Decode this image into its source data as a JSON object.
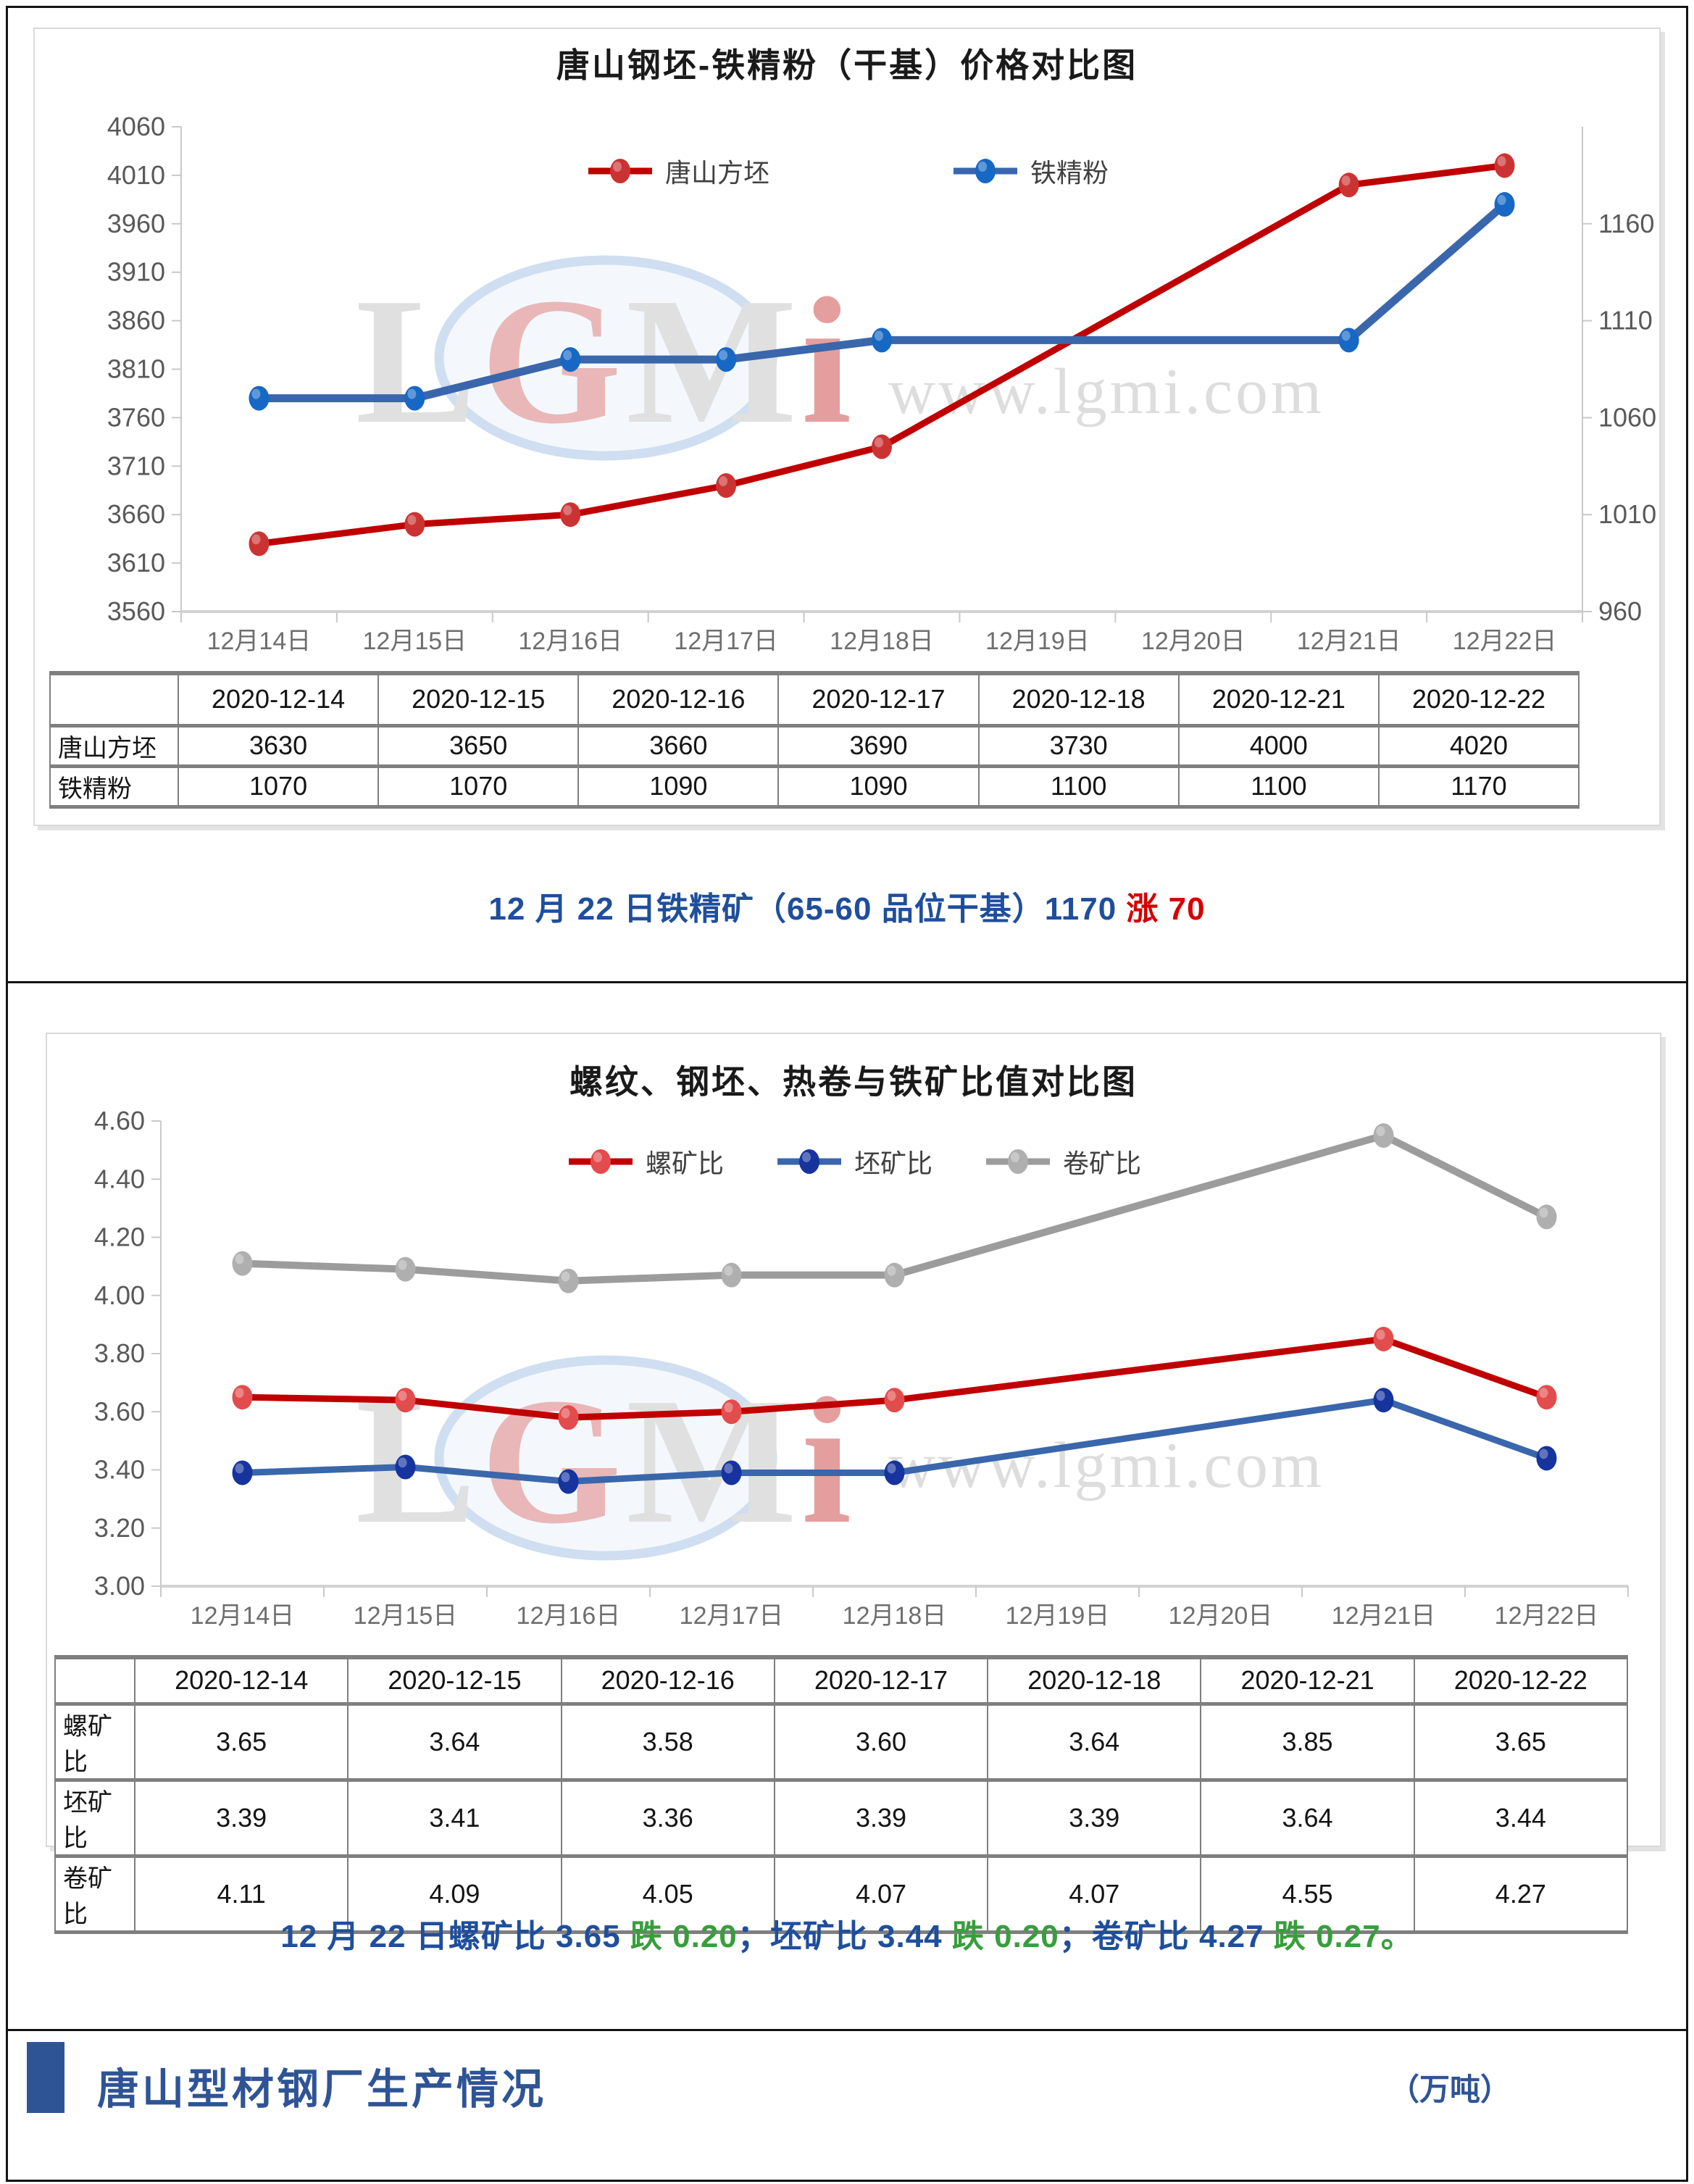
{
  "style": {
    "accent_blue": "#1F4E9C",
    "accent_red": "#D40000",
    "accent_green": "#389E3C",
    "footer_blue": "#2F5496",
    "axis_line": "#C9C9C9",
    "bottom_axis_line": "#D2D2D2",
    "tick_label": "#595959",
    "table_border": "#7F7F7F",
    "watermark_gray": "#DADADA",
    "frame": "#141414"
  },
  "watermark": {
    "logo": "LGMi",
    "site": "www.lgmi.com"
  },
  "chart_data": [
    {
      "type": "line",
      "title": "唐山钢坯-铁精粉（干基）价格对比图",
      "legend_position": "top-inside",
      "grid": false,
      "categories": [
        "12月14日",
        "12月15日",
        "12月16日",
        "12月17日",
        "12月18日",
        "12月19日",
        "12月20日",
        "12月21日",
        "12月22日"
      ],
      "category_indices": [
        0,
        1,
        2,
        3,
        4,
        7,
        8
      ],
      "dates": [
        "2020-12-14",
        "2020-12-15",
        "2020-12-16",
        "2020-12-17",
        "2020-12-18",
        "2020-12-21",
        "2020-12-22"
      ],
      "value_format": "int",
      "left_axis": {
        "min": 3560,
        "max": 4060,
        "tick_values": [
          4060,
          4010,
          3960,
          3910,
          3860,
          3810,
          3760,
          3710,
          3660,
          3610,
          3560
        ],
        "tick_labels": [
          "4060",
          "4010",
          "3960",
          "3910",
          "3860",
          "3810",
          "3760",
          "3710",
          "3660",
          "3610",
          "3560"
        ]
      },
      "right_axis": {
        "min": 960,
        "max": 1210,
        "tick_values": [
          1160,
          1110,
          1060,
          1010,
          960
        ],
        "tick_labels": [
          "1160",
          "1110",
          "1060",
          "1010",
          "960"
        ]
      },
      "series": [
        {
          "name": "唐山方坯",
          "axis": "left",
          "values": [
            3630,
            3650,
            3660,
            3690,
            3730,
            4000,
            4020
          ],
          "line_color": "#C00000",
          "marker_color": "#CB3333",
          "line_width": 9
        },
        {
          "name": "铁精粉",
          "axis": "right",
          "values": [
            1070,
            1070,
            1090,
            1090,
            1100,
            1100,
            1170
          ],
          "line_color": "#3A66AC",
          "marker_color": "#1668C4",
          "line_width": 11
        }
      ]
    },
    {
      "type": "line",
      "title": "螺纹、钢坯、热卷与铁矿比值对比图",
      "legend_position": "top-inside",
      "grid": false,
      "categories": [
        "12月14日",
        "12月15日",
        "12月16日",
        "12月17日",
        "12月18日",
        "12月19日",
        "12月20日",
        "12月21日",
        "12月22日"
      ],
      "category_indices": [
        0,
        1,
        2,
        3,
        4,
        7,
        8
      ],
      "dates": [
        "2020-12-14",
        "2020-12-15",
        "2020-12-16",
        "2020-12-17",
        "2020-12-18",
        "2020-12-21",
        "2020-12-22"
      ],
      "value_format": "2dp",
      "left_axis": {
        "min": 3.0,
        "max": 4.6,
        "tick_values": [
          4.6,
          4.4,
          4.2,
          4.0,
          3.8,
          3.6,
          3.4,
          3.2,
          3.0
        ],
        "tick_labels": [
          "4.60",
          "4.40",
          "4.20",
          "4.00",
          "3.80",
          "3.60",
          "3.40",
          "3.20",
          "3.00"
        ]
      },
      "series": [
        {
          "name": "螺矿比",
          "axis": "left",
          "values": [
            3.65,
            3.64,
            3.58,
            3.6,
            3.64,
            3.85,
            3.65
          ],
          "line_color": "#C00000",
          "marker_color": "#E24C4C",
          "line_width": 9
        },
        {
          "name": "坯矿比",
          "axis": "left",
          "values": [
            3.39,
            3.41,
            3.36,
            3.39,
            3.39,
            3.64,
            3.44
          ],
          "line_color": "#3A66AC",
          "marker_color": "#16339E",
          "line_width": 9
        },
        {
          "name": "卷矿比",
          "axis": "left",
          "values": [
            4.11,
            4.09,
            4.05,
            4.07,
            4.07,
            4.55,
            4.27
          ],
          "line_color": "#9C9C9C",
          "marker_color": "#AFAFAF",
          "line_width": 10
        }
      ]
    }
  ],
  "captions": {
    "chart1": [
      {
        "text": "12 月 22 日铁精矿（65-60 品位干基）1170 ",
        "color": "#1F4E9C"
      },
      {
        "text": "涨 70",
        "color": "#D40000"
      }
    ],
    "chart2": [
      {
        "text": "12 月 22 日螺矿比 3.65 ",
        "color": "#1F4E9C"
      },
      {
        "text": "跌 0.20",
        "color": "#389E3C"
      },
      {
        "text": "；坯矿比 3.44 ",
        "color": "#1F4E9C"
      },
      {
        "text": "跌 0.20",
        "color": "#389E3C"
      },
      {
        "text": "；卷矿比 4.27 ",
        "color": "#1F4E9C"
      },
      {
        "text": "跌 0.27。",
        "color": "#389E3C"
      }
    ]
  },
  "footer": {
    "title": "唐山型材钢厂生产情况",
    "unit": "（万吨）"
  }
}
